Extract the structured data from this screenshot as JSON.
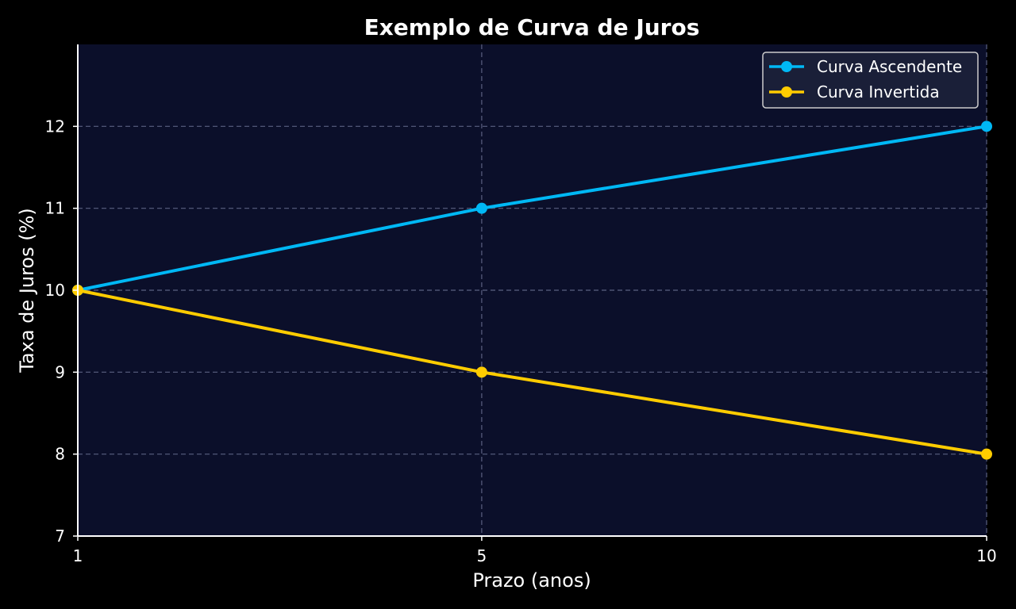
{
  "chart_data": {
    "type": "line",
    "title": "Exemplo de Curva de Juros",
    "xlabel": "Prazo (anos)",
    "ylabel": "Taxa de Juros (%)",
    "x": [
      1,
      5,
      10
    ],
    "xticks": [
      "1",
      "5",
      "10"
    ],
    "yticks": [
      "7",
      "8",
      "9",
      "10",
      "11",
      "12"
    ],
    "xlim": [
      1,
      10
    ],
    "ylim": [
      7,
      13
    ],
    "grid": true,
    "legend_position": "top-right",
    "background_color": "#0b0f2a",
    "series": [
      {
        "name": "Curva Ascendente",
        "values": [
          10,
          11,
          12
        ],
        "color": "#00b8f5"
      },
      {
        "name": "Curva Invertida",
        "values": [
          10,
          9,
          8
        ],
        "color": "#ffcc00"
      }
    ]
  }
}
